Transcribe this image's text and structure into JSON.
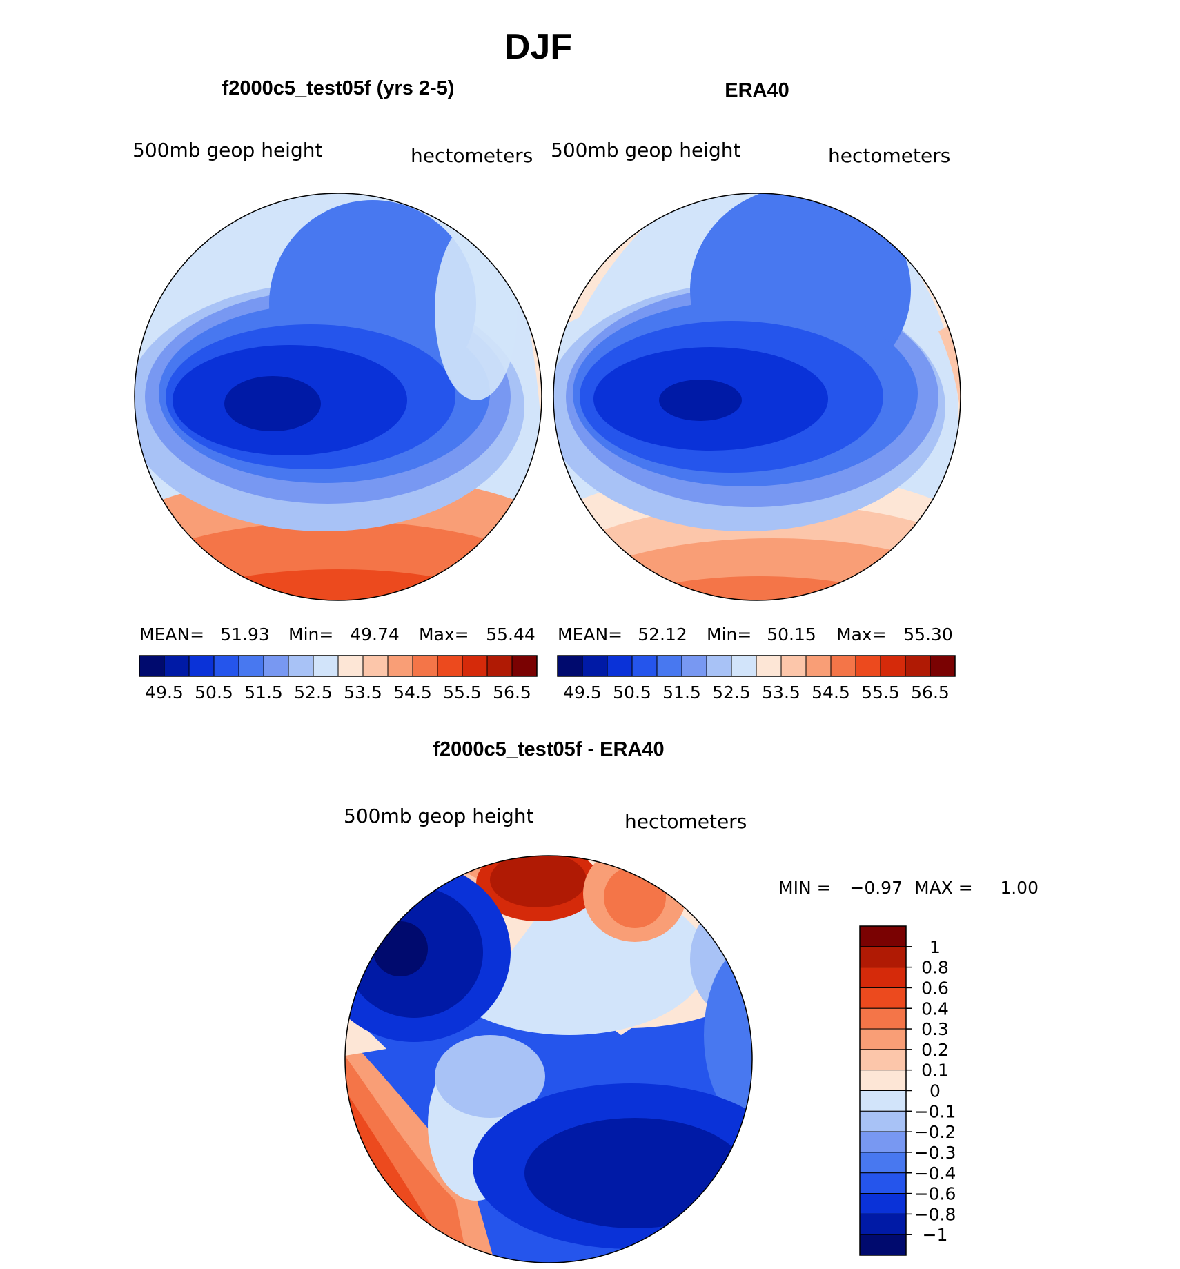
{
  "figure": {
    "season": "DJF"
  },
  "panels": [
    {
      "id": "model",
      "title": "f2000c5_test05f (yrs 2-5)",
      "variable": "500mb geop height",
      "units": "hectometers",
      "stats": {
        "mean_label": "MEAN=",
        "mean": "51.93",
        "min_label": "Min=",
        "min": "49.74",
        "max_label": "Max=",
        "max": "55.44"
      }
    },
    {
      "id": "obs",
      "title": "ERA40",
      "variable": "500mb geop height",
      "units": "hectometers",
      "stats": {
        "mean_label": "MEAN=",
        "mean": "52.12",
        "min_label": "Min=",
        "min": "50.15",
        "max_label": "Max=",
        "max": "55.30"
      }
    }
  ],
  "abs_colorbar": {
    "colors": [
      "#000a6e",
      "#001aa6",
      "#0a32d8",
      "#2555ec",
      "#4878f0",
      "#7898f2",
      "#a8c2f6",
      "#d2e4fa",
      "#fde6d6",
      "#fcc6aa",
      "#f99e76",
      "#f47548",
      "#ec4a1e",
      "#d52a0a",
      "#b01a04",
      "#7a0202"
    ],
    "tick_labels": [
      "49.5",
      "50.5",
      "51.5",
      "52.5",
      "53.5",
      "54.5",
      "55.5",
      "56.5"
    ]
  },
  "difference": {
    "title": "f2000c5_test05f - ERA40",
    "variable": "500mb geop height",
    "units": "hectometers",
    "min_label": "MIN =",
    "min": "−0.97",
    "max_label": "MAX =",
    "max": "1.00"
  },
  "diff_colorbar": {
    "colors_top_to_bottom": [
      "#7a0202",
      "#b01a04",
      "#d52a0a",
      "#ec4a1e",
      "#f47548",
      "#f99e76",
      "#fcc6aa",
      "#fde6d6",
      "#d2e4fa",
      "#a8c2f6",
      "#7898f2",
      "#4878f0",
      "#2555ec",
      "#0a32d8",
      "#001aa6",
      "#000a6e"
    ],
    "labels": [
      "1",
      "0.8",
      "0.6",
      "0.4",
      "0.3",
      "0.2",
      "0.1",
      "0",
      "−0.1",
      "−0.2",
      "−0.3",
      "−0.4",
      "−0.6",
      "−0.8",
      "−1"
    ]
  }
}
